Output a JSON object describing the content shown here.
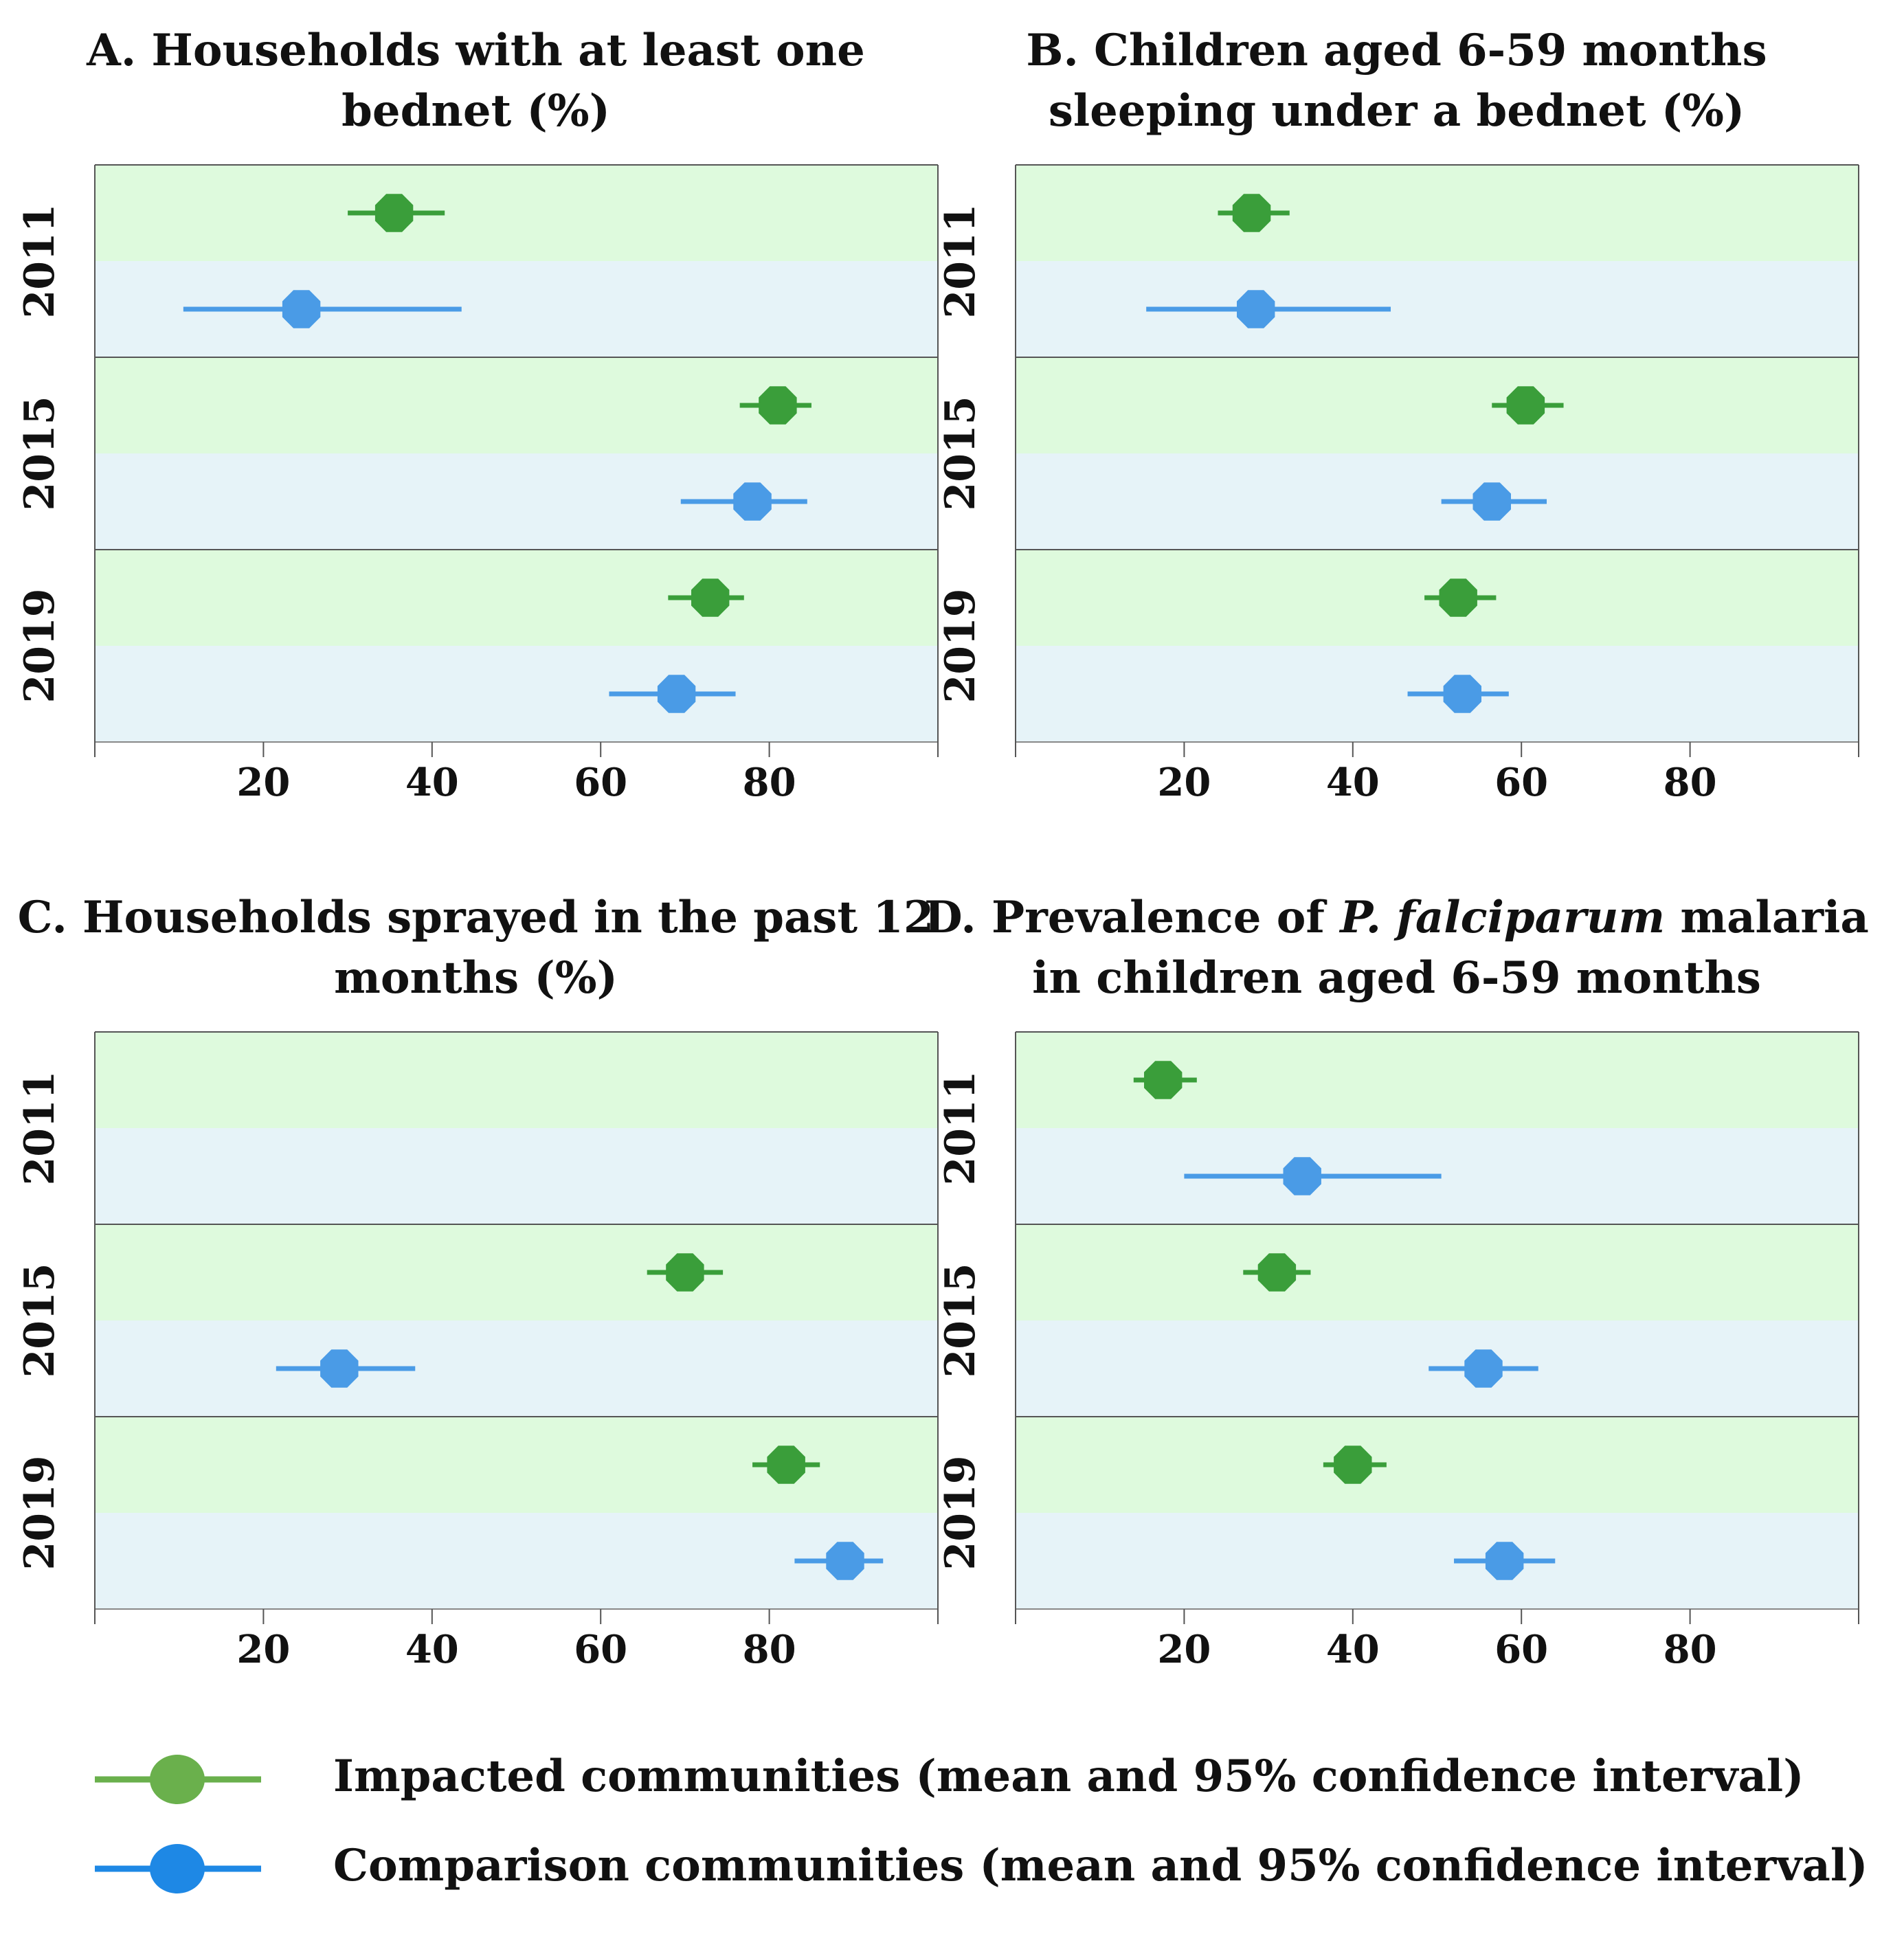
{
  "colors": {
    "impacted": "#3a9e3a",
    "impacted_legend": "#6ab04c",
    "comparison": "#4a9be6",
    "comparison_legend": "#1e88e5",
    "band_green": "#defadd",
    "band_blue": "#e6f3f8"
  },
  "chart_data": [
    {
      "id": "A",
      "type": "scatter",
      "title_lines": [
        "A. Households with at least one",
        "bednet (%)"
      ],
      "xlabel": "",
      "ylabel": "",
      "xlim": [
        0,
        100
      ],
      "xticks": [
        20,
        40,
        60,
        80
      ],
      "groups": [
        "2011",
        "2015",
        "2019"
      ],
      "series": [
        {
          "name": "Impacted",
          "mean": [
            35.5,
            81,
            73
          ],
          "ci": [
            [
              30,
              41.5
            ],
            [
              76.5,
              85
            ],
            [
              68,
              77
            ]
          ]
        },
        {
          "name": "Comparison",
          "mean": [
            24.5,
            78,
            69
          ],
          "ci": [
            [
              10.5,
              43.5
            ],
            [
              69.5,
              84.5
            ],
            [
              61,
              76
            ]
          ]
        }
      ]
    },
    {
      "id": "B",
      "type": "scatter",
      "title_lines": [
        "B. Children aged 6-59 months",
        "sleeping under a bednet (%)"
      ],
      "xlabel": "",
      "ylabel": "",
      "xlim": [
        0,
        100
      ],
      "xticks": [
        20,
        40,
        60,
        80
      ],
      "groups": [
        "2011",
        "2015",
        "2019"
      ],
      "series": [
        {
          "name": "Impacted",
          "mean": [
            28,
            60.5,
            52.5
          ],
          "ci": [
            [
              24,
              32.5
            ],
            [
              56.5,
              65
            ],
            [
              48.5,
              57
            ]
          ]
        },
        {
          "name": "Comparison",
          "mean": [
            28.5,
            56.5,
            53
          ],
          "ci": [
            [
              15.5,
              44.5
            ],
            [
              50.5,
              63
            ],
            [
              46.5,
              58.5
            ]
          ]
        }
      ]
    },
    {
      "id": "C",
      "type": "scatter",
      "title_lines": [
        "C. Households sprayed in the past 12",
        "months (%)"
      ],
      "xlabel": "",
      "ylabel": "",
      "xlim": [
        0,
        100
      ],
      "xticks": [
        20,
        40,
        60,
        80
      ],
      "groups": [
        "2011",
        "2015",
        "2019"
      ],
      "series": [
        {
          "name": "Impacted",
          "mean": [
            null,
            70,
            82
          ],
          "ci": [
            null,
            [
              65.5,
              74.5
            ],
            [
              78,
              86
            ]
          ]
        },
        {
          "name": "Comparison",
          "mean": [
            null,
            29,
            89
          ],
          "ci": [
            null,
            [
              21.5,
              38
            ],
            [
              83,
              93.5
            ]
          ]
        }
      ]
    },
    {
      "id": "D",
      "type": "scatter",
      "title_lines": [
        "D. Prevalence of P. falciparum malaria",
        "in children aged 6-59 months"
      ],
      "xlabel": "",
      "ylabel": "",
      "xlim": [
        0,
        100
      ],
      "xticks": [
        20,
        40,
        60,
        80
      ],
      "groups": [
        "2011",
        "2015",
        "2019"
      ],
      "series": [
        {
          "name": "Impacted",
          "mean": [
            17.5,
            31,
            40
          ],
          "ci": [
            [
              14,
              21.5
            ],
            [
              27,
              35
            ],
            [
              36.5,
              44
            ]
          ]
        },
        {
          "name": "Comparison",
          "mean": [
            34,
            55.5,
            58
          ],
          "ci": [
            [
              20,
              50.5
            ],
            [
              49,
              62
            ],
            [
              52,
              64
            ]
          ]
        }
      ]
    }
  ],
  "legend": [
    {
      "label": "Impacted communities (mean and 95% confidence interval)",
      "color_key": "impacted_legend"
    },
    {
      "label": "Comparison communities (mean and 95% confidence interval)",
      "color_key": "comparison_legend"
    }
  ]
}
